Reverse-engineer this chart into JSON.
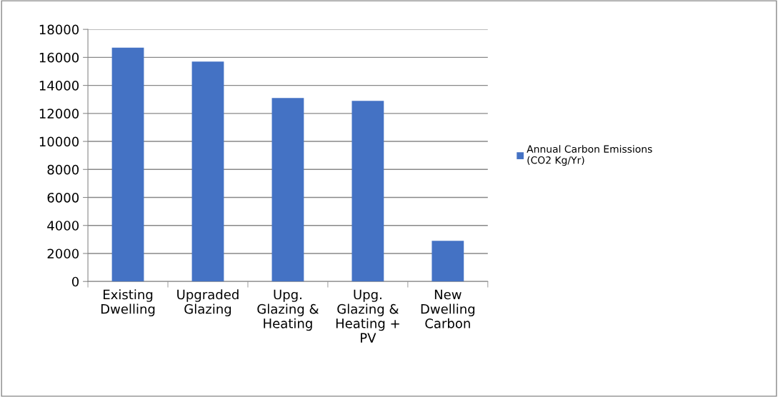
{
  "chart_data": {
    "type": "bar",
    "categories": [
      "Existing\nDwelling",
      "Upgraded\nGlazing",
      "Upg.\nGlazing &\nHeating",
      "Upg.\nGlazing &\nHeating +\nPV",
      "New\nDwelling\nCarbon"
    ],
    "series": [
      {
        "name": "Annual Carbon Emissions\n(CO2 Kg/Yr)",
        "color": "#4472c4",
        "values": [
          16700,
          15700,
          13100,
          12900,
          2900
        ]
      }
    ],
    "ylim": [
      0,
      18000
    ],
    "yticks": [
      0,
      2000,
      4000,
      6000,
      8000,
      10000,
      12000,
      14000,
      16000,
      18000
    ],
    "grid": "y",
    "legend": "right"
  }
}
